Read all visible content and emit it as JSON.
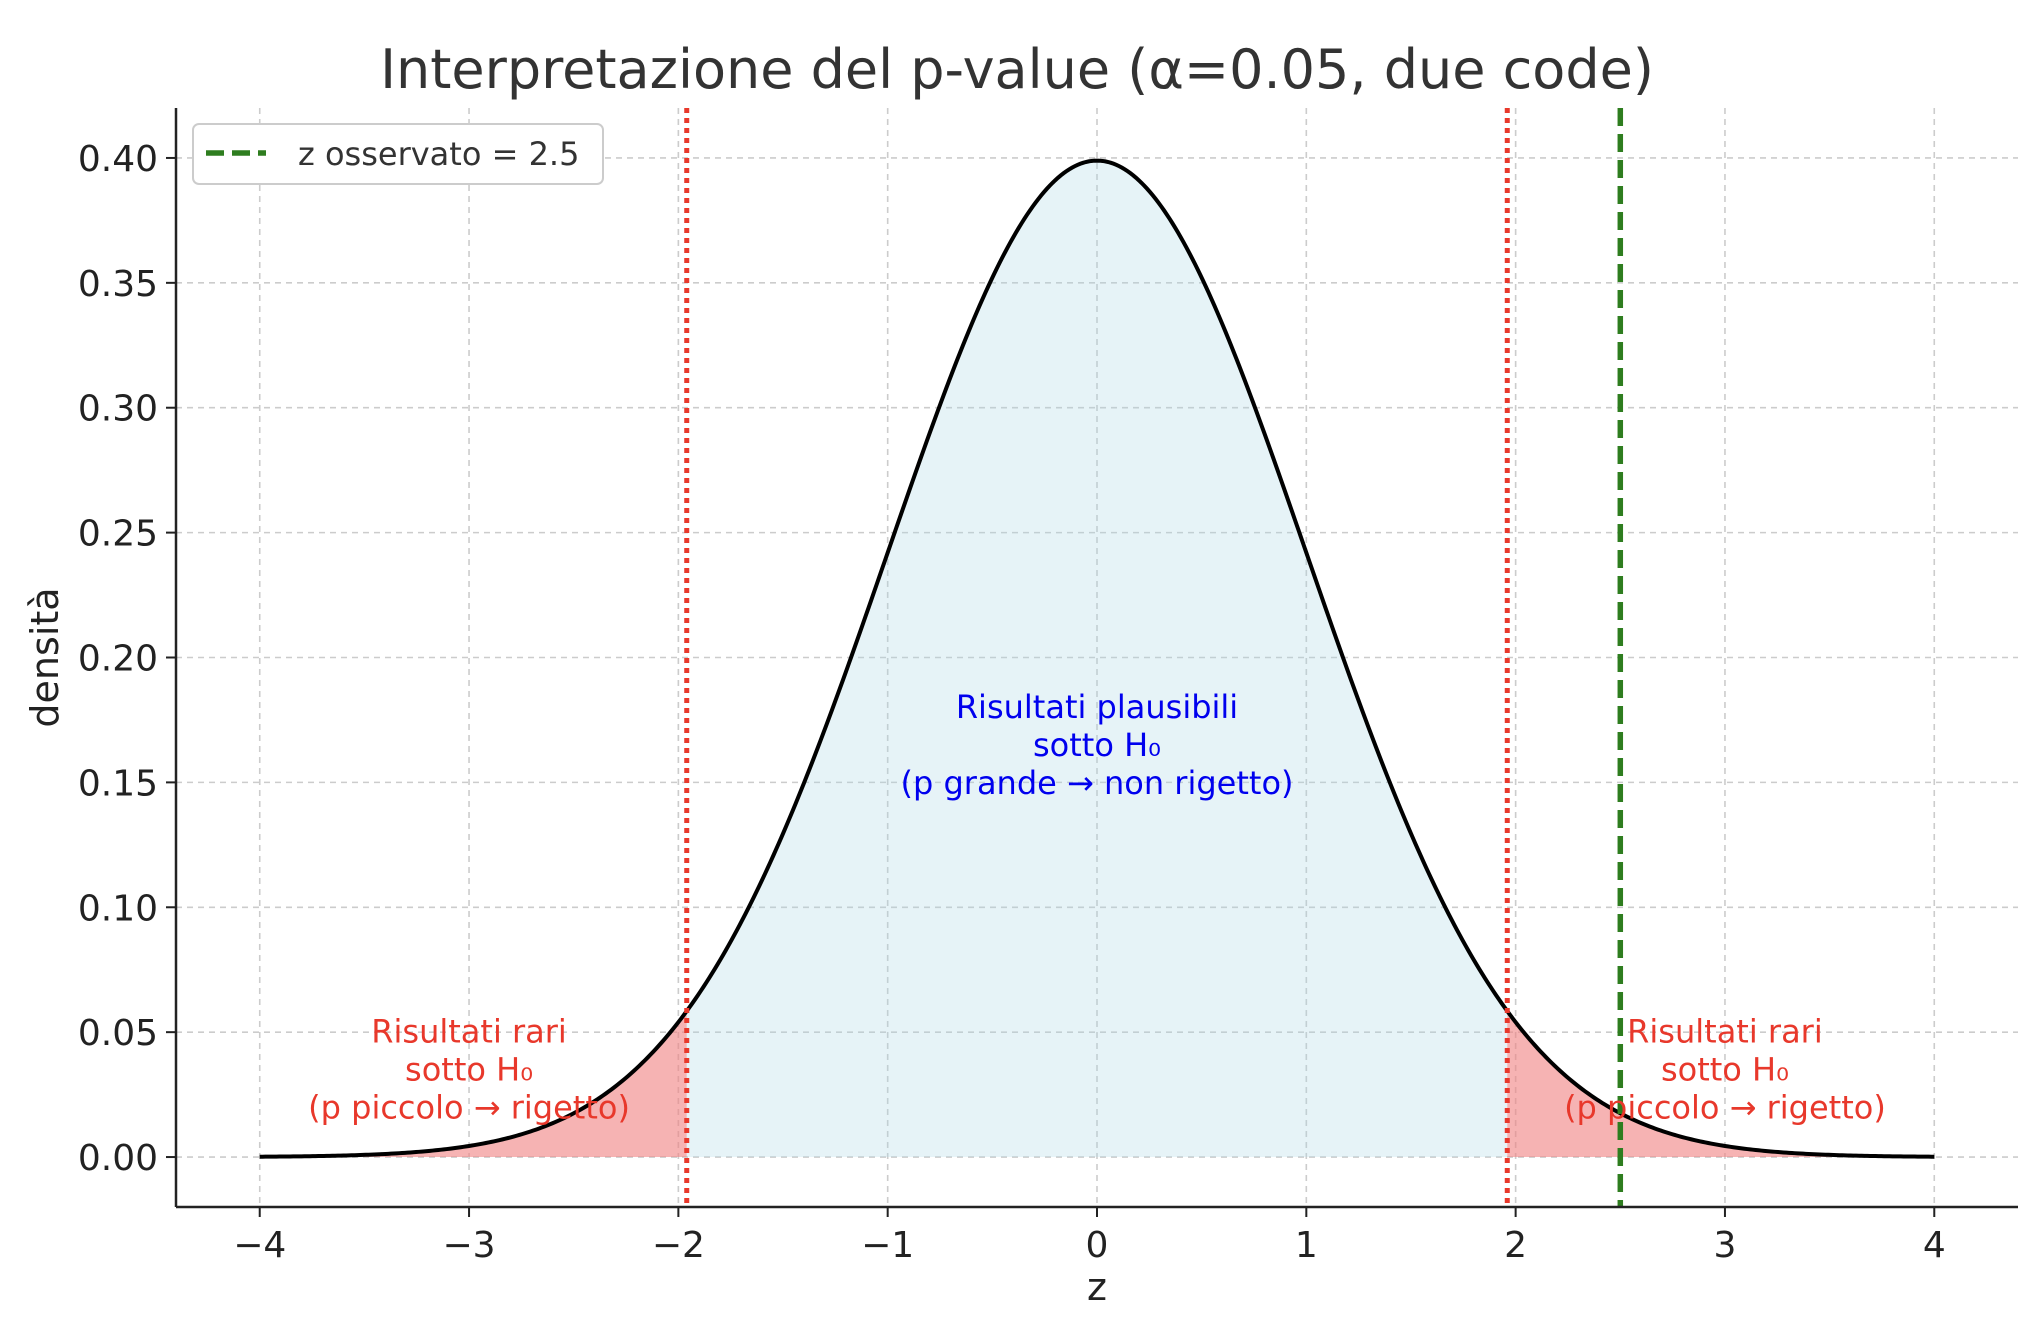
{
  "chart_data": {
    "type": "area",
    "title": "Interpretazione del p-value (α=0.05, due code)",
    "xlabel": "z",
    "ylabel": "densità",
    "xlim": [
      -4.4,
      4.4
    ],
    "ylim": [
      -0.02,
      0.42
    ],
    "xticks": [
      -4,
      -3,
      -2,
      -1,
      0,
      1,
      2,
      3,
      4
    ],
    "xtick_labels": [
      "−4",
      "−3",
      "−2",
      "−1",
      "0",
      "1",
      "2",
      "3",
      "4"
    ],
    "yticks": [
      0.0,
      0.05,
      0.1,
      0.15,
      0.2,
      0.25,
      0.3,
      0.35,
      0.4
    ],
    "ytick_labels": [
      "0.00",
      "0.05",
      "0.10",
      "0.15",
      "0.20",
      "0.25",
      "0.30",
      "0.35",
      "0.40"
    ],
    "grid": true,
    "curve": {
      "function": "standard normal pdf",
      "x_range": [
        -4,
        4
      ],
      "color": "#000000"
    },
    "regions": [
      {
        "from": -4,
        "to": -1.96,
        "color": "#f08080",
        "opacity": 0.6
      },
      {
        "from": -1.96,
        "to": 1.96,
        "color": "#add8e6",
        "opacity": 0.3
      },
      {
        "from": 1.96,
        "to": 4,
        "color": "#f08080",
        "opacity": 0.6
      }
    ],
    "critical_lines": [
      {
        "x": -1.96,
        "color": "#e8382b",
        "style": "dotted"
      },
      {
        "x": 1.96,
        "color": "#e8382b",
        "style": "dotted"
      }
    ],
    "observed_line": {
      "x": 2.5,
      "color": "#2e7d1f",
      "style": "dashed",
      "label": "z osservato = 2.5"
    },
    "legend_position": "top-left",
    "annotations": [
      {
        "x": 0,
        "y": 0.165,
        "color": "#0000ee",
        "lines": [
          "Risultati plausibili",
          "sotto H₀",
          "(p grande → non rigetto)"
        ]
      },
      {
        "x": -3,
        "y": 0.035,
        "color": "#e8382b",
        "lines": [
          "Risultati rari",
          "sotto H₀",
          "(p piccolo → rigetto)"
        ]
      },
      {
        "x": 3,
        "y": 0.035,
        "color": "#e8382b",
        "lines": [
          "Risultati rari",
          "sotto H₀",
          "(p piccolo → rigetto)"
        ]
      }
    ]
  }
}
